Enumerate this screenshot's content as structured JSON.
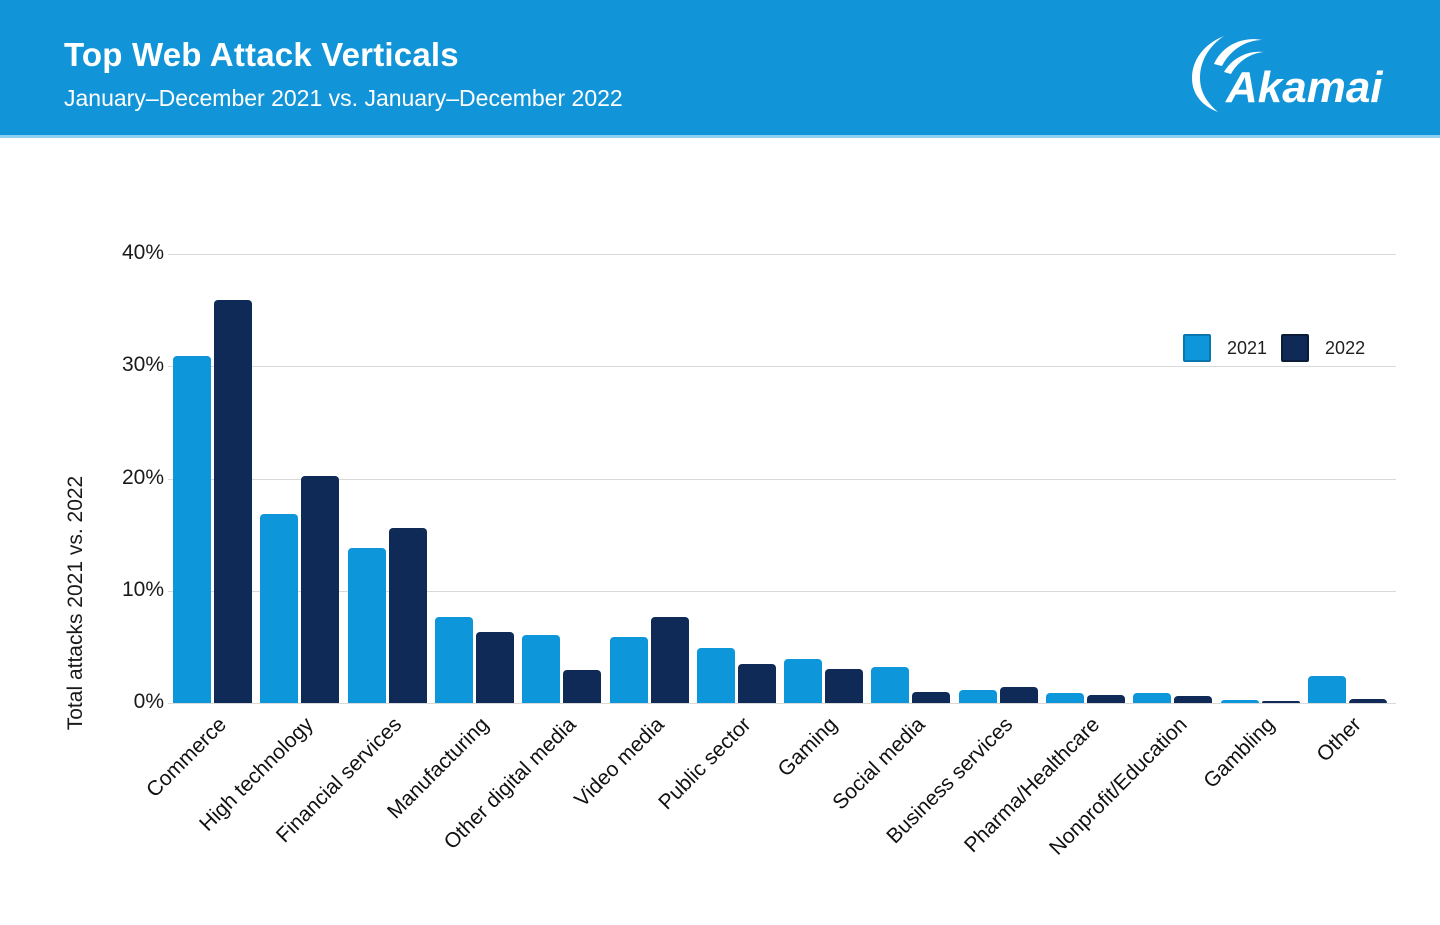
{
  "header": {
    "title": "Top Web Attack Verticals",
    "subtitle": "January–December 2021 vs. January–December 2022",
    "logo_text": "Akamai"
  },
  "colors": {
    "header_bg": "#1295d8",
    "series_2021": "#0d96da",
    "series_2022": "#0f2a56",
    "gridline": "#d9d9d9",
    "axis_text": "#1a1a1a"
  },
  "legend": [
    {
      "label": "2021",
      "color": "#0d96da",
      "border": "#0b76ad"
    },
    {
      "label": "2022",
      "color": "#0f2a56",
      "border": "#0a1c38"
    }
  ],
  "y_axis": {
    "title": "Total attacks 2021 vs. 2022",
    "ticks": [
      "0%",
      "10%",
      "20%",
      "30%",
      "40%"
    ]
  },
  "chart_data": {
    "type": "bar",
    "title": "Top Web Attack Verticals",
    "subtitle": "January–December 2021 vs. January–December 2022",
    "xlabel": "",
    "ylabel": "Total attacks 2021 vs. 2022",
    "ylim": [
      0,
      40
    ],
    "ytick_values": [
      0,
      10,
      20,
      30,
      40
    ],
    "grid": "horizontal",
    "legend_position": "top-right",
    "categories": [
      "Commerce",
      "High technology",
      "Financial services",
      "Manufacturing",
      "Other digital media",
      "Video media",
      "Public sector",
      "Gaming",
      "Social media",
      "Business services",
      "Pharma/Healthcare",
      "Nonprofit/Education",
      "Gambling",
      "Other"
    ],
    "series": [
      {
        "name": "2021",
        "color": "#0d96da",
        "values": [
          30.9,
          16.8,
          13.8,
          7.7,
          6.1,
          5.9,
          4.9,
          3.9,
          3.2,
          1.2,
          0.9,
          0.9,
          0.25,
          2.4
        ]
      },
      {
        "name": "2022",
        "color": "#0f2a56",
        "values": [
          35.9,
          20.2,
          15.6,
          6.3,
          2.9,
          7.7,
          3.5,
          3.0,
          1.0,
          1.4,
          0.7,
          0.6,
          0.15,
          0.35
        ]
      }
    ]
  }
}
